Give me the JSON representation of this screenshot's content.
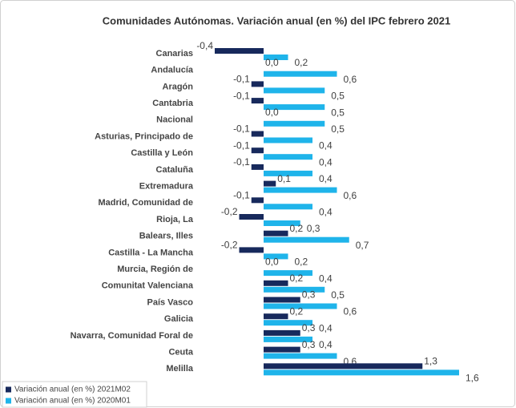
{
  "chart_data": {
    "type": "bar",
    "orientation": "horizontal",
    "title": "Comunidades Autónomas. Variación anual (en %) del IPC febrero 2021",
    "categories": [
      "Canarias",
      "Andalucía",
      "Aragón",
      "Cantabria",
      "Nacional",
      "Asturias, Principado de",
      "Castilla y León",
      "Cataluña",
      "Extremadura",
      "Madrid, Comunidad de",
      "Rioja, La",
      "Balears, Illes",
      "Castilla - La Mancha",
      "Murcia, Región de",
      "Comunitat Valenciana",
      "País Vasco",
      "Galicia",
      "Navarra, Comunidad Foral de",
      "Ceuta",
      "Melilla"
    ],
    "series": [
      {
        "name": "Variación anual (en %) 2021M02",
        "color": "#17295c",
        "values": [
          -0.4,
          0.0,
          -0.1,
          -0.1,
          0.0,
          -0.1,
          -0.1,
          -0.1,
          0.1,
          -0.1,
          -0.2,
          0.2,
          -0.2,
          0.0,
          0.2,
          0.3,
          0.2,
          0.3,
          0.3,
          1.3
        ],
        "value_labels": [
          "-0,4",
          "0,0",
          "-0,1",
          "-0,1",
          "0,0",
          "-0,1",
          "-0,1",
          "-0,1",
          "0,1",
          "-0,1",
          "-0,2",
          "0,2",
          "-0,2",
          "0,0",
          "0,2",
          "0,3",
          "0,2",
          "0,3",
          "0,3",
          "1,3"
        ]
      },
      {
        "name": "Variación anual (en %) 2020M01",
        "color": "#1fb4ea",
        "values": [
          0.2,
          0.6,
          0.5,
          0.5,
          0.5,
          0.4,
          0.4,
          0.4,
          0.6,
          0.4,
          0.3,
          0.7,
          0.2,
          0.4,
          0.5,
          0.6,
          0.4,
          0.4,
          0.6,
          1.6
        ],
        "value_labels": [
          "0,2",
          "0,6",
          "0,5",
          "0,5",
          "0,5",
          "0,4",
          "0,4",
          "0,4",
          "0,6",
          "0,4",
          "0,3",
          "0,7",
          "0,2",
          "0,4",
          "0,5",
          "0,6",
          "0,4",
          "0,4",
          "0,6",
          "1,6"
        ]
      }
    ],
    "legend": "bottom-left"
  }
}
